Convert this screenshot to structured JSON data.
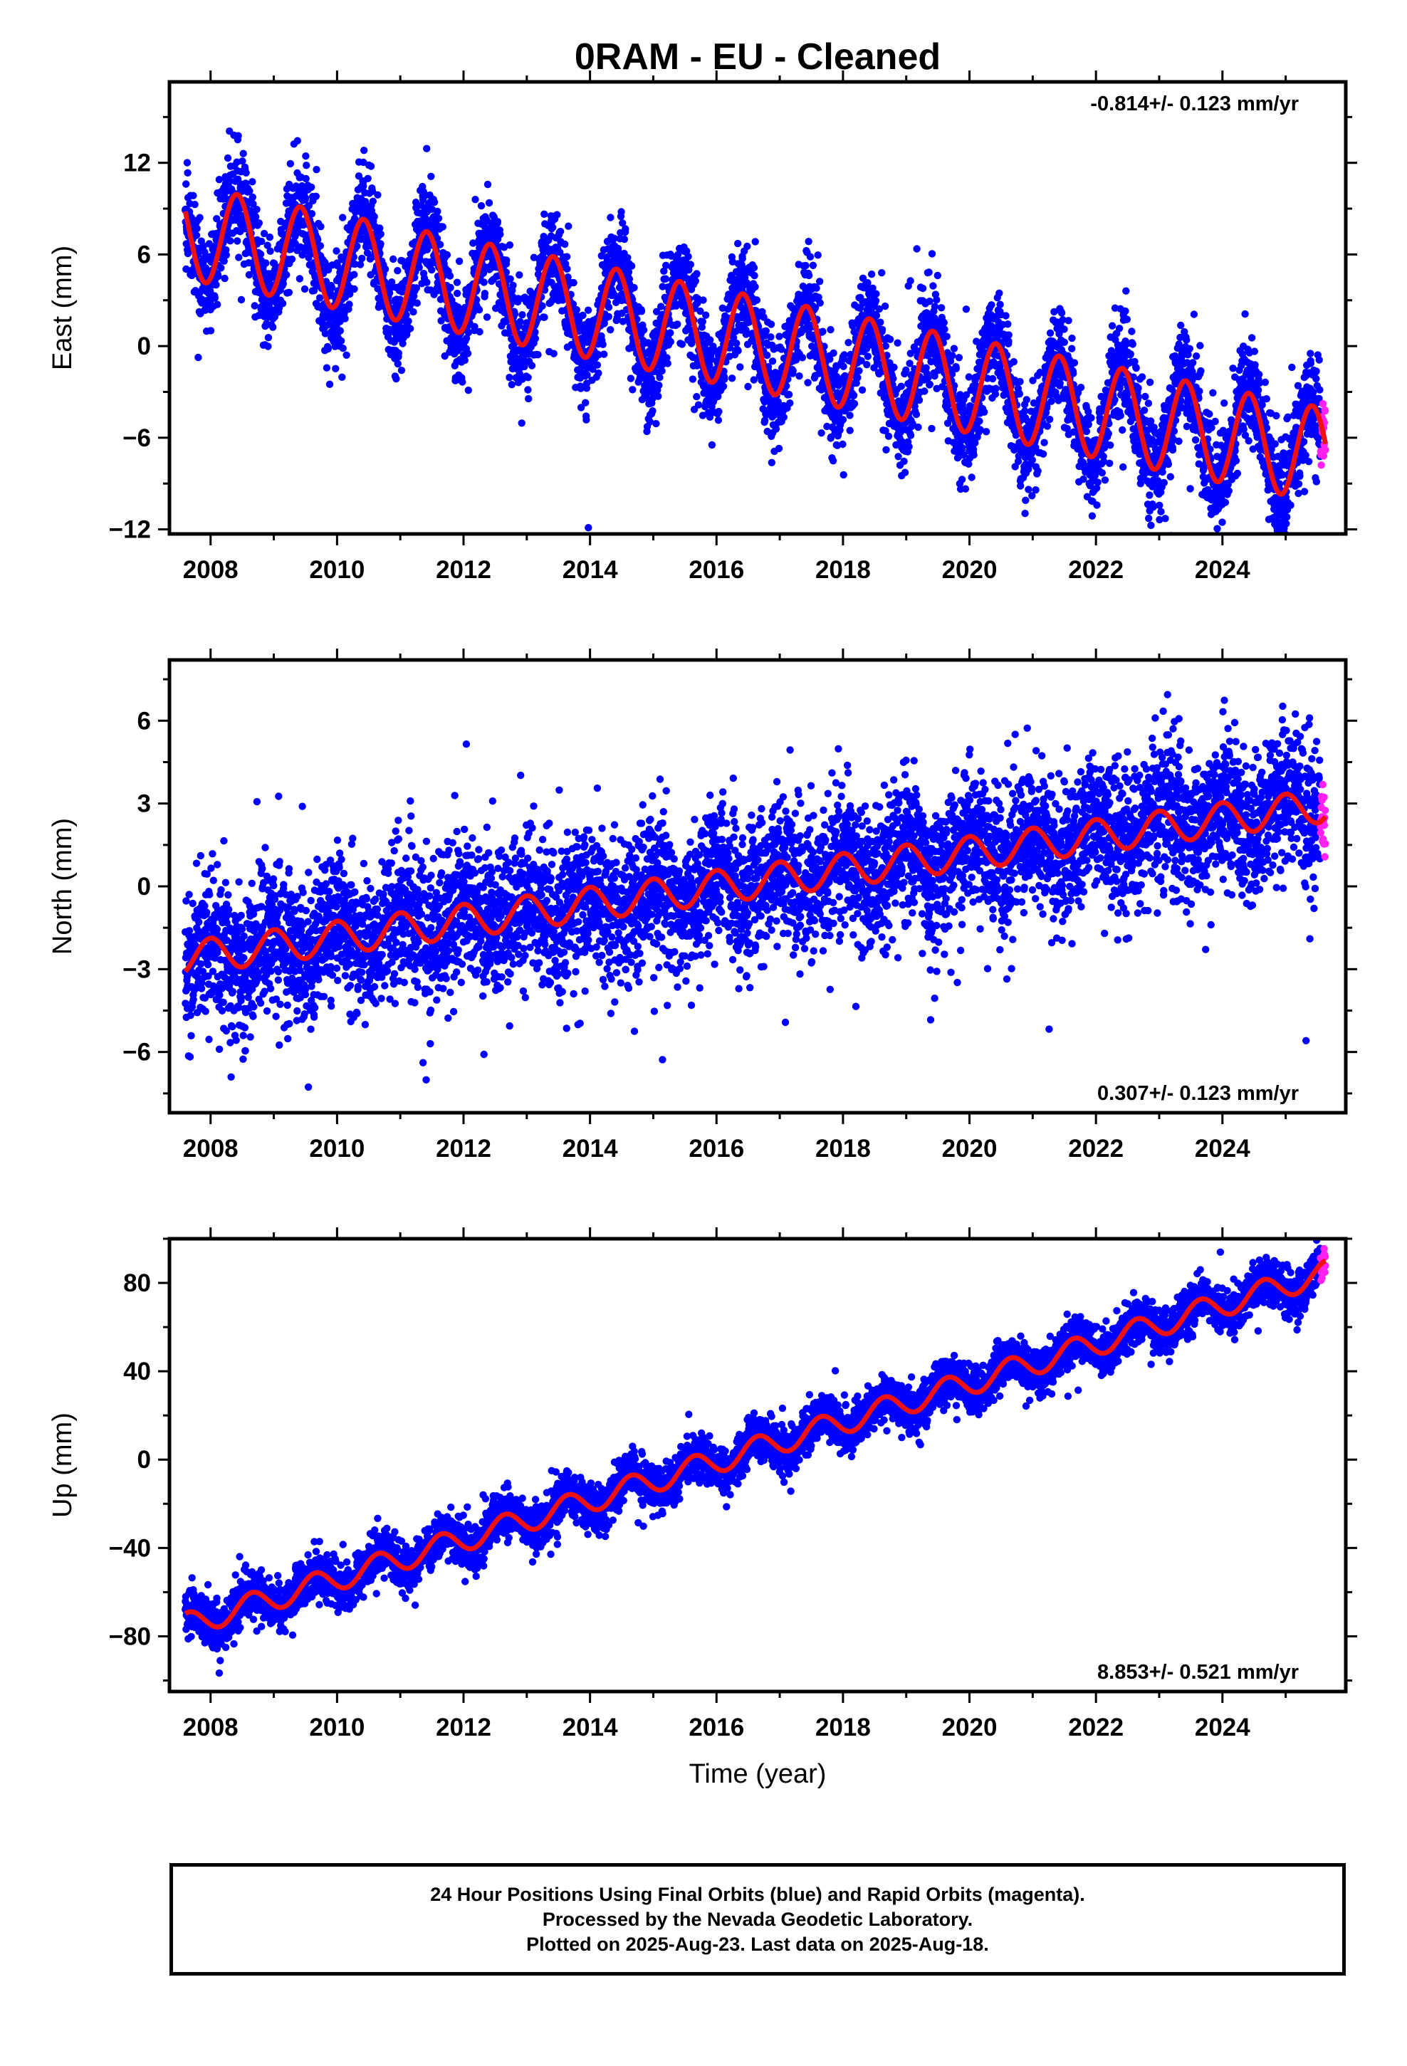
{
  "title": "0RAM  - EU - Cleaned",
  "xlabel": "Time (year)",
  "colors": {
    "final": "#0000ff",
    "rapid": "#ff22ee",
    "model": "#ee1111"
  },
  "footer": {
    "line1": "24 Hour Positions Using Final Orbits (blue) and Rapid Orbits (magenta).",
    "line2": "Processed by the Nevada Geodetic Laboratory.",
    "line3": "Plotted on 2025-Aug-23. Last data on 2025-Aug-18."
  },
  "chart_data": [
    {
      "type": "scatter",
      "component": "east",
      "ylabel": "East (mm)",
      "rate_label": "-0.814+/- 0.123 mm/yr",
      "rate_position": "top-right",
      "xlim": [
        2007.35,
        2025.95
      ],
      "ylim": [
        -12.3,
        17.3
      ],
      "xticks": [
        2008,
        2010,
        2012,
        2014,
        2016,
        2018,
        2020,
        2022,
        2024
      ],
      "yticks": [
        -12,
        -6,
        0,
        6,
        12
      ],
      "data_start": 2007.6,
      "data_end": 2025.63,
      "rapid_start": 2025.55,
      "series": [
        {
          "name": "Final Orbits (blue)",
          "kind": "daily positions",
          "trend_intercept_2007_6": 7.5,
          "trend_slope_mm_per_yr": -0.814,
          "annual_amplitude": 3.3,
          "annual_peak_phase": 0.42,
          "scatter_sd": 1.6
        },
        {
          "name": "Rapid Orbits (magenta)",
          "kind": "daily positions",
          "x_range": [
            2025.55,
            2025.63
          ]
        },
        {
          "kind": "model fit",
          "trend_intercept_2007_6": 7.5,
          "trend_slope_mm_per_yr": -0.814,
          "annual_amplitude": 3.1,
          "annual_peak_phase": 0.42
        }
      ]
    },
    {
      "type": "scatter",
      "component": "north",
      "ylabel": "North (mm)",
      "rate_label": "0.307+/- 0.123 mm/yr",
      "rate_position": "bottom-right",
      "xlim": [
        2007.35,
        2025.95
      ],
      "ylim": [
        -8.2,
        8.2
      ],
      "xticks": [
        2008,
        2010,
        2012,
        2014,
        2016,
        2018,
        2020,
        2022,
        2024
      ],
      "yticks": [
        -6,
        -3,
        0,
        3,
        6
      ],
      "data_start": 2007.6,
      "data_end": 2025.63,
      "rapid_start": 2025.55,
      "series": [
        {
          "name": "Final Orbits (blue)",
          "kind": "daily positions",
          "trend_intercept_2007_6": -2.6,
          "trend_slope_mm_per_yr": 0.307,
          "annual_amplitude": 0.6,
          "annual_peak_phase": 0.0,
          "scatter_sd": 1.25
        },
        {
          "name": "Rapid Orbits (magenta)",
          "kind": "daily positions",
          "x_range": [
            2025.55,
            2025.63
          ]
        },
        {
          "kind": "model fit",
          "trend_intercept_2007_6": -2.6,
          "trend_slope_mm_per_yr": 0.307,
          "annual_amplitude": 0.6,
          "annual_peak_phase": 0.0
        }
      ]
    },
    {
      "type": "scatter",
      "component": "up",
      "ylabel": "Up (mm)",
      "rate_label": "8.853+/- 0.521 mm/yr",
      "rate_position": "bottom-right",
      "xlim": [
        2007.35,
        2025.95
      ],
      "ylim": [
        -105,
        100
      ],
      "xticks": [
        2008,
        2010,
        2012,
        2014,
        2016,
        2018,
        2020,
        2022,
        2024
      ],
      "yticks": [
        -80,
        -40,
        0,
        40,
        80
      ],
      "data_start": 2007.6,
      "data_end": 2025.63,
      "rapid_start": 2025.55,
      "series": [
        {
          "name": "Final Orbits (blue)",
          "kind": "daily positions",
          "trend_intercept_2007_6": -75.0,
          "trend_slope_mm_per_yr": 8.853,
          "annual_amplitude": 5.5,
          "annual_peak_phase": 0.65,
          "scatter_sd": 5.0
        },
        {
          "name": "Rapid Orbits (magenta)",
          "kind": "daily positions",
          "x_range": [
            2025.55,
            2025.63
          ]
        },
        {
          "kind": "model fit",
          "trend_intercept_2007_6": -75.0,
          "trend_slope_mm_per_yr": 8.853,
          "annual_amplitude": 5.5,
          "annual_peak_phase": 0.65
        }
      ]
    }
  ]
}
